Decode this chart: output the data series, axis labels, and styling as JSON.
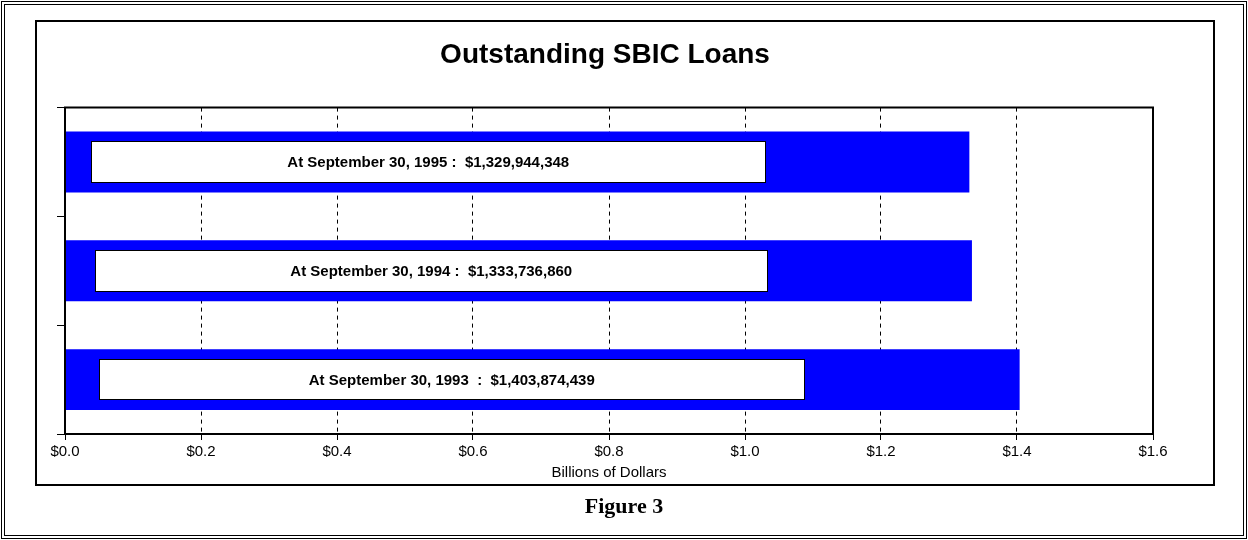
{
  "chart_data": {
    "type": "bar",
    "orientation": "horizontal",
    "title": "Outstanding SBIC Loans",
    "xlabel": "Billions of Dollars",
    "categories": [
      null,
      null,
      null
    ],
    "values": [
      1.329944348,
      1.33373686,
      1.403874439
    ],
    "value_labels": [
      "At September 30, 1995 :  $1,329,944,348",
      "At September 30, 1994 :  $1,333,736,860",
      "At September 30, 1993  :  $1,403,874,439"
    ],
    "color": "#0000ff",
    "xlim": [
      0,
      1.6
    ],
    "xticks": [
      {
        "value": 0,
        "label": "$0.0"
      },
      {
        "value": 0.2,
        "label": "$0.2"
      },
      {
        "value": 0.4,
        "label": "$0.4"
      },
      {
        "value": 0.6,
        "label": "$0.6"
      },
      {
        "value": 0.8,
        "label": "$0.8"
      },
      {
        "value": 1.0,
        "label": "$1.0"
      },
      {
        "value": 1.2,
        "label": "$1.2"
      },
      {
        "value": 1.4,
        "label": "$1.4"
      },
      {
        "value": 1.6,
        "label": "$1.6"
      }
    ],
    "grid": "x",
    "legend": false,
    "tick_labels": "x",
    "annotations": [
      "Figure 3"
    ]
  }
}
